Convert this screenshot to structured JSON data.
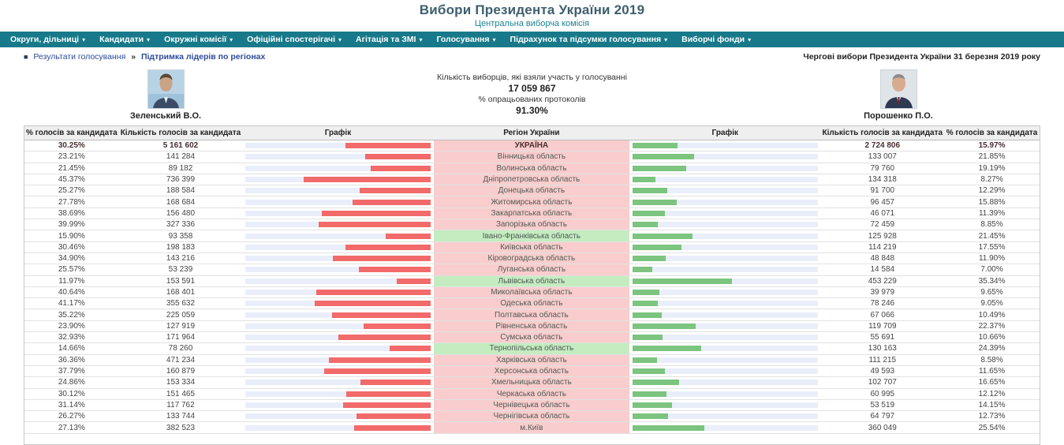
{
  "header": {
    "title": "Вибори Президента України 2019",
    "subtitle": "Центральна виборча комісія"
  },
  "nav": {
    "items": [
      {
        "label": "Округи, дільниці"
      },
      {
        "label": "Кандидати"
      },
      {
        "label": "Окружні комісії"
      },
      {
        "label": "Офіційні спостерігачі"
      },
      {
        "label": "Агітація та ЗМІ"
      },
      {
        "label": "Голосування"
      },
      {
        "label": "Підрахунок та підсумки голосування"
      },
      {
        "label": "Виборчі фонди"
      }
    ],
    "caret": "▾"
  },
  "breadcrumb": {
    "bullet": "■",
    "section": "Результати голосування",
    "separator": "»",
    "page": "Підтримка лідерів по регіонах"
  },
  "election_note": "Чергові вибори Президента України 31 березня 2019 року",
  "candidates": {
    "left": {
      "name": "Зеленський В.О."
    },
    "right": {
      "name": "Порошенко П.О."
    }
  },
  "stats": {
    "turnout_label": "Кількість виборців, які взяли участь у голосуванні",
    "turnout_value": "17 059 867",
    "protocols_label": "% опрацьованих протоколів",
    "protocols_value": "91.30%"
  },
  "table": {
    "headers": [
      "% голосів за кандидата",
      "Кількість голосів за кандидата",
      "Графік",
      "Регіон України",
      "Графік",
      "Кількість голосів за кандидата",
      "% голосів за кандидата"
    ],
    "rows": [
      {
        "region": "УКРАЇНА",
        "left_pct": "30.25%",
        "left_votes": "5 161 602",
        "right_votes": "2 724 806",
        "right_pct": "15.97%",
        "highlight": "pink",
        "bold": true
      },
      {
        "region": "Вінницька область",
        "left_pct": "23.21%",
        "left_votes": "141 284",
        "right_votes": "133 007",
        "right_pct": "21.85%",
        "highlight": "pink",
        "bold": false
      },
      {
        "region": "Волинська область",
        "left_pct": "21.45%",
        "left_votes": "89 182",
        "right_votes": "79 760",
        "right_pct": "19.19%",
        "highlight": "pink",
        "bold": false
      },
      {
        "region": "Дніпропетровська область",
        "left_pct": "45.37%",
        "left_votes": "736 399",
        "right_votes": "134 318",
        "right_pct": "8.27%",
        "highlight": "pink",
        "bold": false
      },
      {
        "region": "Донецька область",
        "left_pct": "25.27%",
        "left_votes": "188 584",
        "right_votes": "91 700",
        "right_pct": "12.29%",
        "highlight": "pink",
        "bold": false
      },
      {
        "region": "Житомирська область",
        "left_pct": "27.78%",
        "left_votes": "168 684",
        "right_votes": "96 457",
        "right_pct": "15.88%",
        "highlight": "pink",
        "bold": false
      },
      {
        "region": "Закарпатська область",
        "left_pct": "38.69%",
        "left_votes": "156 480",
        "right_votes": "46 071",
        "right_pct": "11.39%",
        "highlight": "pink",
        "bold": false
      },
      {
        "region": "Запорізька область",
        "left_pct": "39.99%",
        "left_votes": "327 336",
        "right_votes": "72 459",
        "right_pct": "8.85%",
        "highlight": "pink",
        "bold": false
      },
      {
        "region": "Івано-Франківська область",
        "left_pct": "15.90%",
        "left_votes": "93 358",
        "right_votes": "125 928",
        "right_pct": "21.45%",
        "highlight": "green",
        "bold": false
      },
      {
        "region": "Київська область",
        "left_pct": "30.46%",
        "left_votes": "198 183",
        "right_votes": "114 219",
        "right_pct": "17.55%",
        "highlight": "pink",
        "bold": false
      },
      {
        "region": "Кіровоградська область",
        "left_pct": "34.90%",
        "left_votes": "143 216",
        "right_votes": "48 848",
        "right_pct": "11.90%",
        "highlight": "pink",
        "bold": false
      },
      {
        "region": "Луганська область",
        "left_pct": "25.57%",
        "left_votes": "53 239",
        "right_votes": "14 584",
        "right_pct": "7.00%",
        "highlight": "pink",
        "bold": false
      },
      {
        "region": "Львівська область",
        "left_pct": "11.97%",
        "left_votes": "153 591",
        "right_votes": "453 229",
        "right_pct": "35.34%",
        "highlight": "green",
        "bold": false
      },
      {
        "region": "Миколаївська область",
        "left_pct": "40.64%",
        "left_votes": "168 401",
        "right_votes": "39 979",
        "right_pct": "9.65%",
        "highlight": "pink",
        "bold": false
      },
      {
        "region": "Одеська область",
        "left_pct": "41.17%",
        "left_votes": "355 632",
        "right_votes": "78 246",
        "right_pct": "9.05%",
        "highlight": "pink",
        "bold": false
      },
      {
        "region": "Полтавська область",
        "left_pct": "35.22%",
        "left_votes": "225 059",
        "right_votes": "67 066",
        "right_pct": "10.49%",
        "highlight": "pink",
        "bold": false
      },
      {
        "region": "Рівненська область",
        "left_pct": "23.90%",
        "left_votes": "127 919",
        "right_votes": "119 709",
        "right_pct": "22.37%",
        "highlight": "pink",
        "bold": false
      },
      {
        "region": "Сумська область",
        "left_pct": "32.93%",
        "left_votes": "171 964",
        "right_votes": "55 691",
        "right_pct": "10.66%",
        "highlight": "pink",
        "bold": false
      },
      {
        "region": "Тернопільська область",
        "left_pct": "14.66%",
        "left_votes": "78 260",
        "right_votes": "130 163",
        "right_pct": "24.39%",
        "highlight": "green",
        "bold": false
      },
      {
        "region": "Харківська область",
        "left_pct": "36.36%",
        "left_votes": "471 234",
        "right_votes": "111 215",
        "right_pct": "8.58%",
        "highlight": "pink",
        "bold": false
      },
      {
        "region": "Херсонська область",
        "left_pct": "37.79%",
        "left_votes": "160 879",
        "right_votes": "49 593",
        "right_pct": "11.65%",
        "highlight": "pink",
        "bold": false
      },
      {
        "region": "Хмельницька область",
        "left_pct": "24.86%",
        "left_votes": "153 334",
        "right_votes": "102 707",
        "right_pct": "16.65%",
        "highlight": "pink",
        "bold": false
      },
      {
        "region": "Черкаська область",
        "left_pct": "30.12%",
        "left_votes": "151 465",
        "right_votes": "60 995",
        "right_pct": "12.12%",
        "highlight": "pink",
        "bold": false
      },
      {
        "region": "Чернівецька область",
        "left_pct": "31.14%",
        "left_votes": "117 762",
        "right_votes": "53 519",
        "right_pct": "14.15%",
        "highlight": "pink",
        "bold": false
      },
      {
        "region": "Чернігівська область",
        "left_pct": "26.27%",
        "left_votes": "133 744",
        "right_votes": "64 797",
        "right_pct": "12.73%",
        "highlight": "pink",
        "bold": false
      },
      {
        "region": "м.Київ",
        "left_pct": "27.13%",
        "left_votes": "382 523",
        "right_votes": "360 049",
        "right_pct": "25.54%",
        "highlight": "pink",
        "bold": false
      }
    ]
  },
  "chart_data": {
    "type": "bar",
    "orientation": "horizontal",
    "title": "Підтримка лідерів по регіонах",
    "categories": [
      "УКРАЇНА",
      "Вінницька область",
      "Волинська область",
      "Дніпропетровська область",
      "Донецька область",
      "Житомирська область",
      "Закарпатська область",
      "Запорізька область",
      "Івано-Франківська область",
      "Київська область",
      "Кіровоградська область",
      "Луганська область",
      "Львівська область",
      "Миколаївська область",
      "Одеська область",
      "Полтавська область",
      "Рівненська область",
      "Сумська область",
      "Тернопільська область",
      "Харківська область",
      "Херсонська область",
      "Хмельницька область",
      "Черкаська область",
      "Чернівецька область",
      "Чернігівська область",
      "м.Київ"
    ],
    "series": [
      {
        "name": "Зеленський В.О. — % голосів",
        "values": [
          30.25,
          23.21,
          21.45,
          45.37,
          25.27,
          27.78,
          38.69,
          39.99,
          15.9,
          30.46,
          34.9,
          25.57,
          11.97,
          40.64,
          41.17,
          35.22,
          23.9,
          32.93,
          14.66,
          36.36,
          37.79,
          24.86,
          30.12,
          31.14,
          26.27,
          27.13
        ]
      },
      {
        "name": "Зеленський В.О. — кількість голосів",
        "values": [
          5161602,
          141284,
          89182,
          736399,
          188584,
          168684,
          156480,
          327336,
          93358,
          198183,
          143216,
          53239,
          153591,
          168401,
          355632,
          225059,
          127919,
          171964,
          78260,
          471234,
          160879,
          153334,
          151465,
          117762,
          133744,
          382523
        ]
      },
      {
        "name": "Порошенко П.О. — кількість голосів",
        "values": [
          2724806,
          133007,
          79760,
          134318,
          91700,
          96457,
          46071,
          72459,
          125928,
          114219,
          48848,
          14584,
          453229,
          39979,
          78246,
          67066,
          119709,
          55691,
          130163,
          111215,
          49593,
          102707,
          60995,
          53519,
          64797,
          360049
        ]
      },
      {
        "name": "Порошенко П.О. — % голосів",
        "values": [
          15.97,
          21.85,
          19.19,
          8.27,
          12.29,
          15.88,
          11.39,
          8.85,
          21.45,
          17.55,
          11.9,
          7.0,
          35.34,
          9.65,
          9.05,
          10.49,
          22.37,
          10.66,
          24.39,
          8.58,
          11.65,
          16.65,
          12.12,
          14.15,
          12.73,
          25.54
        ]
      }
    ],
    "bar_scale_max_pct": 66,
    "legend_position": "none",
    "grid": false
  },
  "colors": {
    "nav_teal": "#177989",
    "bar_red": "#f26a6a",
    "bar_green": "#7cc47f",
    "bar_track": "#e9eefa",
    "row_pink": "#f9cdcd",
    "row_green": "#c4ecc0",
    "title": "#3d5f6e",
    "subtitle_teal": "#1b8294",
    "breadcrumb_navy": "#2b4a9b"
  }
}
